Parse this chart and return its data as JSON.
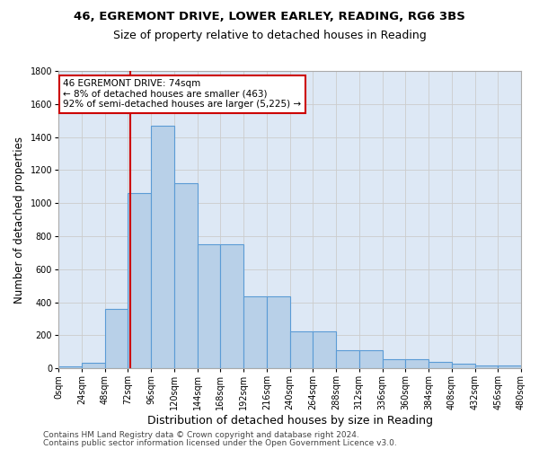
{
  "title1": "46, EGREMONT DRIVE, LOWER EARLEY, READING, RG6 3BS",
  "title2": "Size of property relative to detached houses in Reading",
  "xlabel": "Distribution of detached houses by size in Reading",
  "ylabel": "Number of detached properties",
  "bin_edges": [
    0,
    24,
    48,
    72,
    96,
    120,
    144,
    168,
    192,
    216,
    240,
    264,
    288,
    312,
    336,
    360,
    384,
    408,
    432,
    456,
    480
  ],
  "bar_heights": [
    10,
    35,
    360,
    1060,
    1470,
    1120,
    750,
    750,
    435,
    435,
    225,
    225,
    110,
    110,
    55,
    55,
    40,
    30,
    20,
    15
  ],
  "bar_color": "#b8d0e8",
  "bar_edge_color": "#5b9bd5",
  "property_size": 74,
  "property_line_color": "#cc0000",
  "annotation_text": "46 EGREMONT DRIVE: 74sqm\n← 8% of detached houses are smaller (463)\n92% of semi-detached houses are larger (5,225) →",
  "annotation_box_color": "#ffffff",
  "annotation_box_edge": "#cc0000",
  "ylim": [
    0,
    1800
  ],
  "yticks": [
    0,
    200,
    400,
    600,
    800,
    1000,
    1200,
    1400,
    1600,
    1800
  ],
  "xtick_labels": [
    "0sqm",
    "24sqm",
    "48sqm",
    "72sqm",
    "96sqm",
    "120sqm",
    "144sqm",
    "168sqm",
    "192sqm",
    "216sqm",
    "240sqm",
    "264sqm",
    "288sqm",
    "312sqm",
    "336sqm",
    "360sqm",
    "384sqm",
    "408sqm",
    "432sqm",
    "456sqm",
    "480sqm"
  ],
  "footer1": "Contains HM Land Registry data © Crown copyright and database right 2024.",
  "footer2": "Contains public sector information licensed under the Open Government Licence v3.0.",
  "bg_color": "#ffffff",
  "grid_color": "#cccccc",
  "ax_bg_color": "#dde8f5",
  "title1_fontsize": 9.5,
  "title2_fontsize": 9,
  "axis_label_fontsize": 8.5,
  "tick_fontsize": 7,
  "annotation_fontsize": 7.5,
  "footer_fontsize": 6.5
}
